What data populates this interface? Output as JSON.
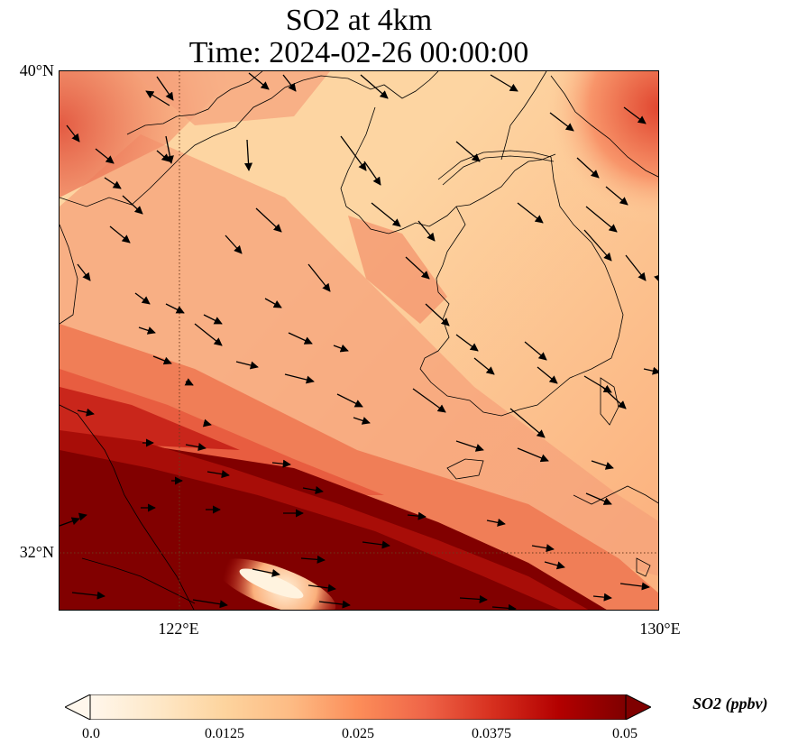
{
  "title": {
    "line1": "SO2 at 4km",
    "line2": "Time: 2024-02-26 00:00:00"
  },
  "map": {
    "variable": "SO2",
    "level": "4km",
    "lat_range": [
      30.8,
      40
    ],
    "lon_range": [
      120,
      130
    ],
    "lat_labels": [
      "40°N",
      "32°N"
    ],
    "lon_labels": [
      "122°E",
      "130°E"
    ],
    "gridlines": {
      "lat": [
        32
      ],
      "lon": [
        122
      ],
      "style": "dotted"
    },
    "wind_arrows_shown": true,
    "coastlines_shown": true
  },
  "colorbar": {
    "label": "SO2 (ppbv)",
    "colormap": "OrRd",
    "range": [
      0.0,
      0.05
    ],
    "ticks": [
      "0.0",
      "0.0125",
      "0.025",
      "0.0375",
      "0.05"
    ],
    "extend": "both",
    "colors": [
      "#fff7ec",
      "#fee8c8",
      "#fdd49e",
      "#fdbb84",
      "#fc8d59",
      "#ef6548",
      "#d7301f",
      "#b30000",
      "#7f0000"
    ]
  }
}
